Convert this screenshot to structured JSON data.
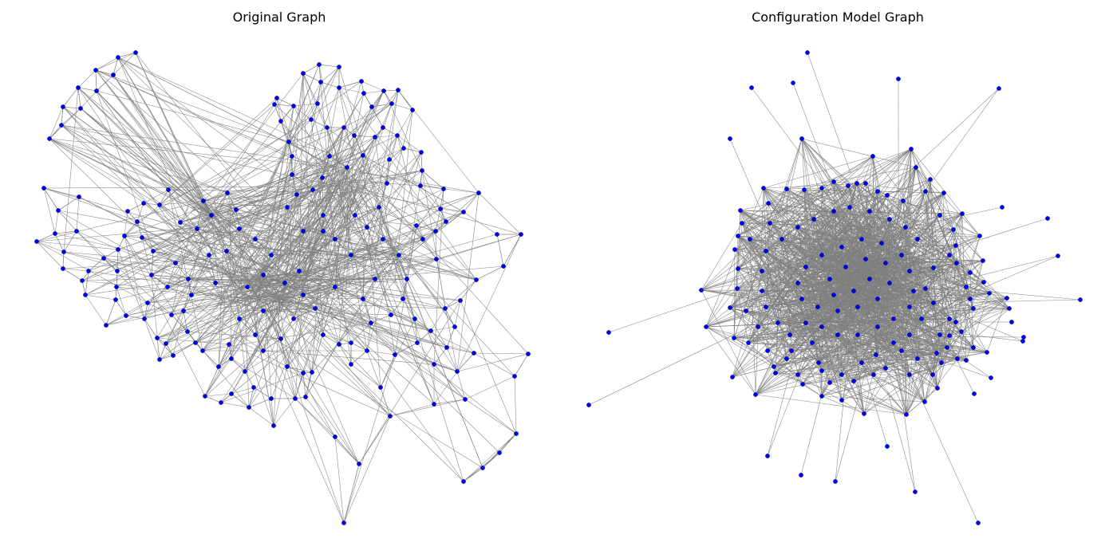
{
  "figure": {
    "panels": [
      {
        "title": "Original Graph",
        "type": "network",
        "layout": "spring",
        "node_color": "#0000ff",
        "edge_color": "#808080"
      },
      {
        "title": "Configuration Model Graph",
        "type": "network",
        "layout": "spring",
        "node_color": "#0000ff",
        "edge_color": "#808080"
      }
    ]
  }
}
